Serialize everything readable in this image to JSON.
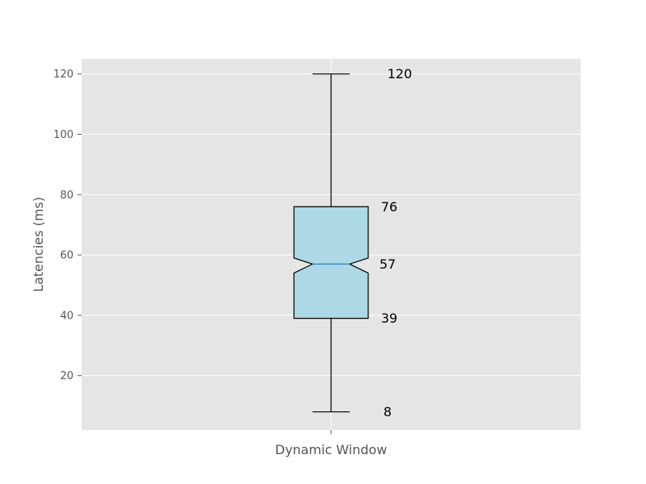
{
  "chart_data": {
    "type": "box",
    "categories": [
      "Dynamic Window"
    ],
    "ylabel": "Latencies (ms)",
    "xlabel": "",
    "ylim": [
      2,
      125
    ],
    "yticks": [
      20,
      40,
      60,
      80,
      100,
      120
    ],
    "grid": true,
    "notched": true,
    "series": [
      {
        "category": "Dynamic Window",
        "min": 8,
        "q1": 39,
        "median": 57,
        "q3": 76,
        "max": 120,
        "notch_low": 54,
        "notch_high": 59,
        "labels": {
          "max": "120",
          "q3": "76",
          "median": "57",
          "q1": "39",
          "min": "8"
        }
      }
    ],
    "colors": {
      "box_fill": "#add8e6",
      "median_line": "#1f77b4",
      "plot_background": "#e5e5e5",
      "grid": "#ffffff",
      "edge": "#000000"
    }
  }
}
